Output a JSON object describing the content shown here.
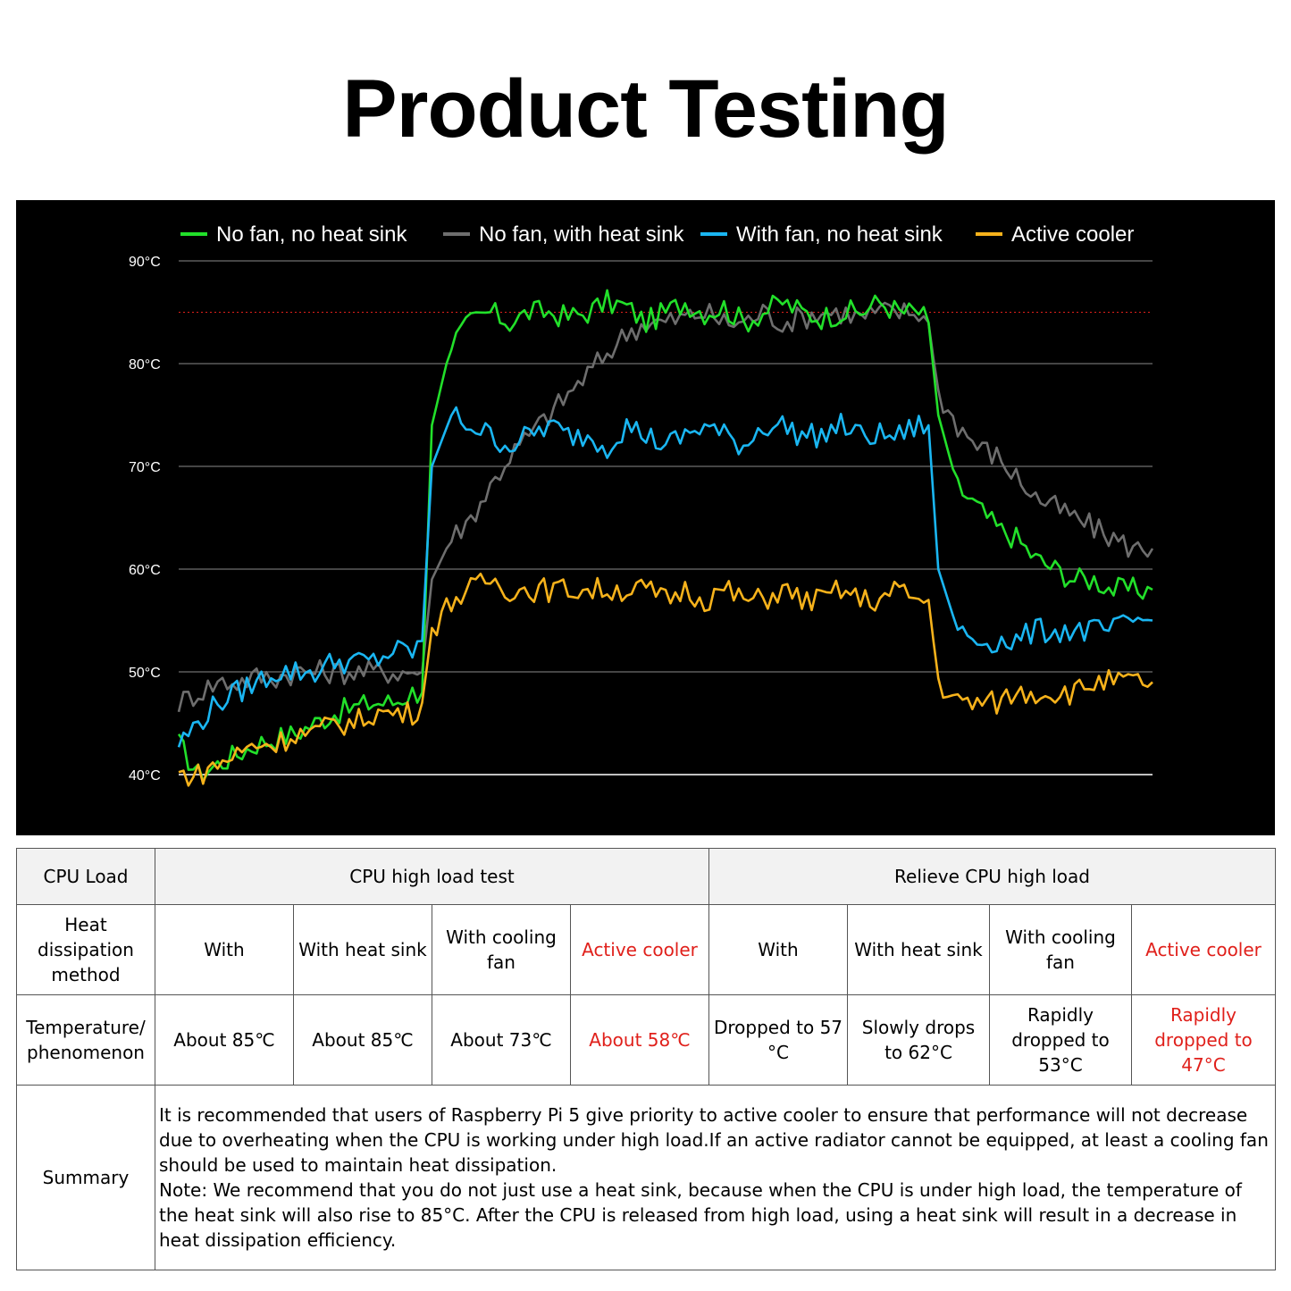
{
  "title": "Product Testing",
  "chart_data": {
    "type": "line",
    "title": "",
    "xlabel": "",
    "ylabel": "",
    "ylim": [
      40,
      90
    ],
    "yticks": [
      "90°C",
      "80°C",
      "70°C",
      "60°C",
      "50°C",
      "40°C"
    ],
    "ytick_values": [
      90,
      80,
      70,
      60,
      50,
      40
    ],
    "grid": true,
    "legend_position": "top",
    "reference_line": {
      "value": 85,
      "style": "dotted",
      "color": "#e0201b"
    },
    "colors": {
      "green": "#22e02a",
      "gray": "#6e6e6e",
      "blue": "#1ab6f2",
      "orange": "#f6b21b"
    },
    "x": [
      0,
      2,
      4,
      6,
      8,
      10,
      12,
      14,
      16,
      18,
      20,
      22,
      24,
      25,
      26,
      28,
      30,
      32,
      34,
      36,
      38,
      40,
      42,
      44,
      46,
      48,
      50,
      52,
      54,
      56,
      58,
      60,
      62,
      64,
      66,
      68,
      70,
      72,
      74,
      76,
      77,
      78,
      80,
      82,
      84,
      86,
      88,
      90,
      92,
      94,
      96,
      98,
      100
    ],
    "series": [
      {
        "name": "No fan, no heat sink",
        "color": "#22e02a",
        "values": [
          43,
          40,
          41,
          42,
          43,
          43.5,
          44,
          45,
          46,
          46.5,
          47,
          47,
          48,
          48,
          74,
          82,
          84,
          85,
          84,
          85,
          85,
          84.5,
          85,
          86,
          85.5,
          84,
          85,
          86,
          85,
          85.5,
          84,
          85,
          86,
          85,
          84.5,
          85,
          85,
          86,
          85,
          85,
          84,
          75,
          68,
          66,
          64,
          63,
          61,
          60,
          59,
          59,
          58,
          58,
          58
        ]
      },
      {
        "name": "No fan, with heat sink",
        "color": "#6e6e6e",
        "values": [
          47,
          48,
          49,
          49,
          49.5,
          49.5,
          50,
          50,
          50,
          50,
          50,
          50,
          50,
          50,
          59,
          63,
          65,
          68,
          71,
          73,
          75,
          77,
          79,
          81,
          83,
          84,
          84,
          84.5,
          85,
          84,
          84,
          85,
          84,
          84.5,
          85,
          85,
          84.5,
          85,
          85,
          85,
          84,
          77,
          74,
          72,
          71,
          69,
          67,
          66,
          65,
          64,
          63,
          62,
          62
        ]
      },
      {
        "name": "With fan, no heat sink",
        "color": "#1ab6f2",
        "values": [
          43,
          45,
          47,
          48,
          49,
          50,
          50,
          50,
          51,
          51,
          51,
          52,
          52,
          53,
          70,
          75,
          74,
          73,
          72,
          73,
          74,
          73,
          73,
          72,
          74,
          73,
          72,
          73,
          74,
          73,
          72,
          74,
          74,
          73,
          73,
          74,
          73,
          73,
          73,
          74,
          74,
          60,
          54,
          53,
          53,
          53,
          54,
          54,
          54,
          54,
          54,
          55,
          55
        ]
      },
      {
        "name": "Active cooler",
        "color": "#f6b21b",
        "values": [
          40,
          40,
          41,
          42,
          43,
          43,
          44,
          44,
          45,
          45,
          46,
          46,
          46,
          47,
          54,
          57,
          58,
          59,
          58,
          58,
          58,
          58,
          58,
          58,
          58,
          58,
          57,
          58,
          57,
          58,
          57,
          57,
          58,
          57,
          57,
          58,
          57,
          57,
          58,
          57,
          57,
          49,
          47,
          47,
          47,
          48,
          48,
          48,
          48,
          49,
          49,
          49,
          49
        ]
      }
    ]
  },
  "table": {
    "row1": {
      "label": "CPU Load",
      "high": "CPU high load test",
      "relieve": "Relieve CPU high load"
    },
    "row2": {
      "label": "Heat dissipation method",
      "cells": [
        "With",
        "With heat sink",
        "With cooling fan",
        "Active cooler",
        "With",
        "With heat sink",
        "With cooling fan",
        "Active cooler"
      ]
    },
    "row3": {
      "label": "Temperature/ phenomenon",
      "cells": [
        "About 85℃",
        "About 85℃",
        "About 73℃",
        "About 58℃",
        "Dropped to 57 °C",
        "Slowly drops to 62°C",
        "Rapidly dropped to 53°C",
        "Rapidly dropped to 47°C"
      ]
    },
    "row4": {
      "label": "Summary",
      "line1": "It is recommended that users of Raspberry Pi 5 give priority to active cooler to ensure that performance will not decrease due to overheating when the CPU is working under high load.If an active radiator cannot be equipped, at least a cooling fan should be used to maintain heat dissipation.",
      "line2": "Note: We recommend that you do not just use a heat sink, because when the CPU is under high load, the temperature of the heat sink will also rise to 85°C. After the CPU is released from high load, using a heat sink will result in a decrease in heat dissipation efficiency."
    }
  }
}
